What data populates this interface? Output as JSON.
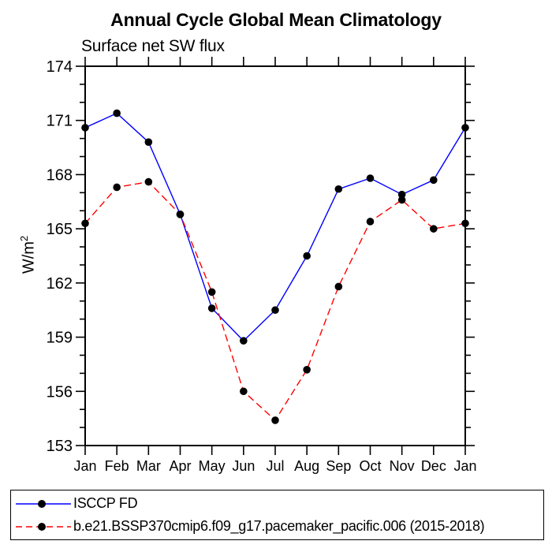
{
  "figure": {
    "title": "Annual Cycle Global Mean Climatology",
    "subtitle": "Surface net SW flux",
    "y_axis_label_base": "W/m",
    "y_axis_label_sup": "2"
  },
  "chart_data": {
    "type": "line",
    "title": "Annual Cycle Global Mean Climatology",
    "subtitle": "Surface net SW flux",
    "xlabel": "",
    "ylabel": "W/m^2",
    "categories": [
      "Jan",
      "Feb",
      "Mar",
      "Apr",
      "May",
      "Jun",
      "Jul",
      "Aug",
      "Sep",
      "Oct",
      "Nov",
      "Dec",
      "Jan"
    ],
    "series": [
      {
        "name": "ISCCP FD",
        "color": "#0000ff",
        "line_style": "solid",
        "marker": "filled-circle",
        "marker_color": "#000000",
        "values": [
          170.6,
          171.4,
          169.8,
          165.8,
          160.6,
          158.8,
          160.5,
          163.5,
          167.2,
          167.8,
          166.9,
          167.7,
          170.6
        ]
      },
      {
        "name": "b.e21.BSSP370cmip6.f09_g17.pacemaker_pacific.006 (2015-2018)",
        "color": "#ff0000",
        "line_style": "dashed",
        "marker": "filled-circle",
        "marker_color": "#000000",
        "values": [
          165.3,
          167.3,
          167.6,
          165.8,
          161.5,
          156.0,
          154.4,
          157.2,
          161.8,
          165.4,
          166.6,
          165.0,
          165.3
        ]
      }
    ],
    "ylim": [
      153,
      174
    ],
    "y_major_step": 3,
    "y_minor_step": 1,
    "y_major_ticks": [
      153,
      156,
      159,
      162,
      165,
      168,
      171,
      174
    ],
    "grid": false,
    "tick_style": "outward-all-sides",
    "legend_position": "bottom-left-box",
    "axis_color": "#000000",
    "background_color": "#ffffff"
  }
}
